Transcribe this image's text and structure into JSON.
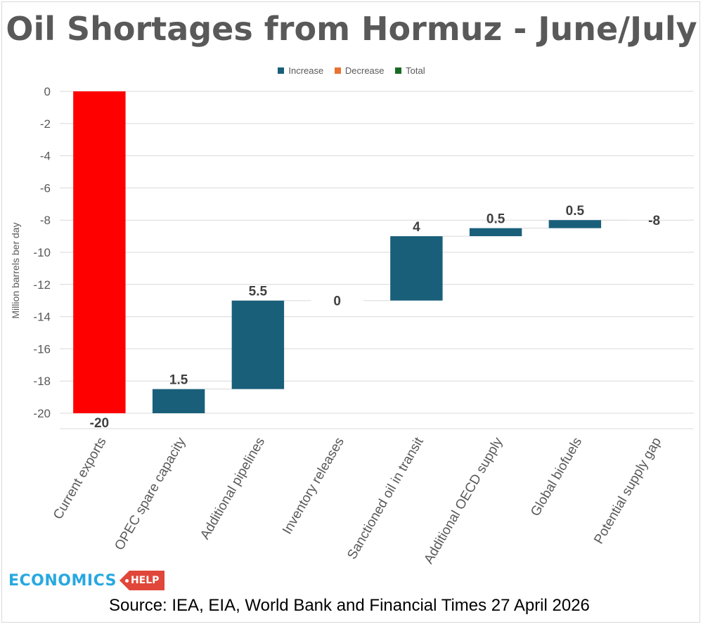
{
  "title": "Oil Shortages from Hormuz - June/July",
  "legend": [
    {
      "label": "Increase",
      "color": "#1a5f7a"
    },
    {
      "label": "Decrease",
      "color": "#e97132"
    },
    {
      "label": "Total",
      "color": "#196b24"
    }
  ],
  "source": "Source: IEA, EIA, World Bank and Financial Times 27 April 2026",
  "logo": {
    "main": "ECONOMICS",
    "tag": "HELP"
  },
  "colors": {
    "increase_bar": "#1a5f7a",
    "total_bar": "#ff0000",
    "gridline": "#d9d9d9",
    "text": "#595959",
    "label": "#404040"
  },
  "chart_data": {
    "type": "waterfall",
    "title": "Oil Shortages from Hormuz - June/July",
    "ylabel": "Million barrels ber day",
    "ylim": [
      -20,
      0
    ],
    "yticks": [
      0,
      -2,
      -4,
      -6,
      -8,
      -10,
      -12,
      -14,
      -16,
      -18,
      -20
    ],
    "categories": [
      "Current exports",
      "OPEC spare capacity",
      "Additional pipelines",
      "Inventory releases",
      "Sanctioned oil in transit",
      "Additional OECD supply",
      "Global biofuels",
      "Potential supply gap"
    ],
    "values": [
      -20,
      1.5,
      5.5,
      0,
      4,
      0.5,
      0.5,
      -8
    ],
    "kinds": [
      "total",
      "increase",
      "increase",
      "increase",
      "increase",
      "increase",
      "increase",
      "total"
    ],
    "data_labels": [
      "-20",
      "1.5",
      "5.5",
      "0",
      "4",
      "0.5",
      "0.5",
      "-8"
    ],
    "grid": true
  }
}
